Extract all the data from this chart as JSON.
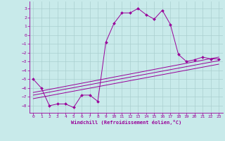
{
  "background_color": "#c8eaea",
  "grid_color": "#aacfcf",
  "line_color": "#990099",
  "xlabel": "Windchill (Refroidissement éolien,°C)",
  "xlim": [
    -0.5,
    23.5
  ],
  "ylim": [
    -8.8,
    3.8
  ],
  "yticks": [
    3,
    2,
    1,
    0,
    -1,
    -2,
    -3,
    -4,
    -5,
    -6,
    -7,
    -8
  ],
  "xticks": [
    0,
    1,
    2,
    3,
    4,
    5,
    6,
    7,
    8,
    9,
    10,
    11,
    12,
    13,
    14,
    15,
    16,
    17,
    18,
    19,
    20,
    21,
    22,
    23
  ],
  "main_line": {
    "x": [
      0,
      1,
      2,
      3,
      4,
      5,
      6,
      7,
      8,
      9,
      10,
      11,
      12,
      13,
      14,
      15,
      16,
      17,
      18,
      19,
      20,
      21,
      22,
      23
    ],
    "y": [
      -5.0,
      -6.0,
      -8.0,
      -7.8,
      -7.8,
      -8.2,
      -6.8,
      -6.8,
      -7.5,
      -0.8,
      1.3,
      2.5,
      2.5,
      3.0,
      2.3,
      1.8,
      2.8,
      1.2,
      -2.2,
      -3.0,
      -2.8,
      -2.5,
      -2.7,
      -2.7
    ]
  },
  "line2": {
    "x": [
      0,
      23
    ],
    "y": [
      -6.5,
      -2.5
    ]
  },
  "line3": {
    "x": [
      0,
      23
    ],
    "y": [
      -6.8,
      -2.9
    ]
  },
  "line4": {
    "x": [
      0,
      23
    ],
    "y": [
      -7.2,
      -3.3
    ]
  }
}
